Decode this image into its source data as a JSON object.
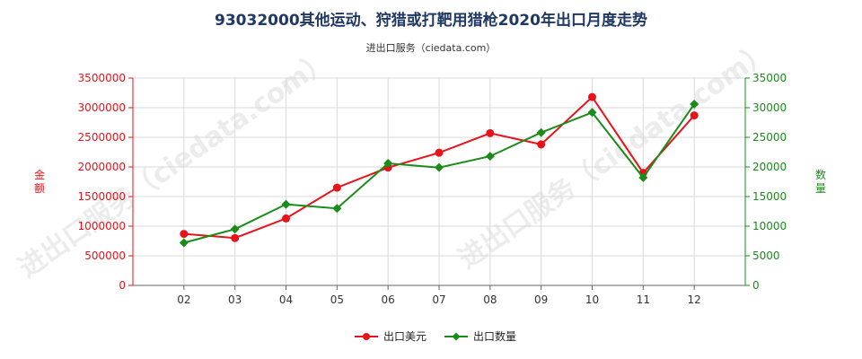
{
  "chart_data": {
    "type": "line",
    "title": "93032000其他运动、狩猎或打靶用猎枪2020年出口月度走势",
    "subtitle": "进出口服务（ciedata.com）",
    "categories": [
      "02",
      "03",
      "04",
      "05",
      "06",
      "07",
      "08",
      "09",
      "10",
      "11",
      "12"
    ],
    "y_left": {
      "label": "金额",
      "range": [
        0,
        3500000
      ],
      "ticks": [
        "0",
        "500000",
        "1000000",
        "1500000",
        "2000000",
        "2500000",
        "3000000",
        "3500000"
      ],
      "color": "#e8131a"
    },
    "y_right": {
      "label": "数量",
      "range": [
        0,
        35000
      ],
      "ticks": [
        "0",
        "5000",
        "10000",
        "15000",
        "20000",
        "25000",
        "30000",
        "35000"
      ],
      "color": "#1a8c1a"
    },
    "series": [
      {
        "name": "出口美元",
        "axis": "left",
        "color": "#e8131a",
        "marker": "circle",
        "values": [
          870000,
          800000,
          1130000,
          1650000,
          1990000,
          2240000,
          2570000,
          2380000,
          3180000,
          1900000,
          2870000
        ]
      },
      {
        "name": "出口数量",
        "axis": "right",
        "color": "#1a8c1a",
        "marker": "diamond",
        "values": [
          7200,
          9500,
          13700,
          13000,
          20600,
          19900,
          21800,
          25800,
          29200,
          18200,
          30600
        ]
      }
    ],
    "grid": true,
    "legend": "bottom-center"
  }
}
